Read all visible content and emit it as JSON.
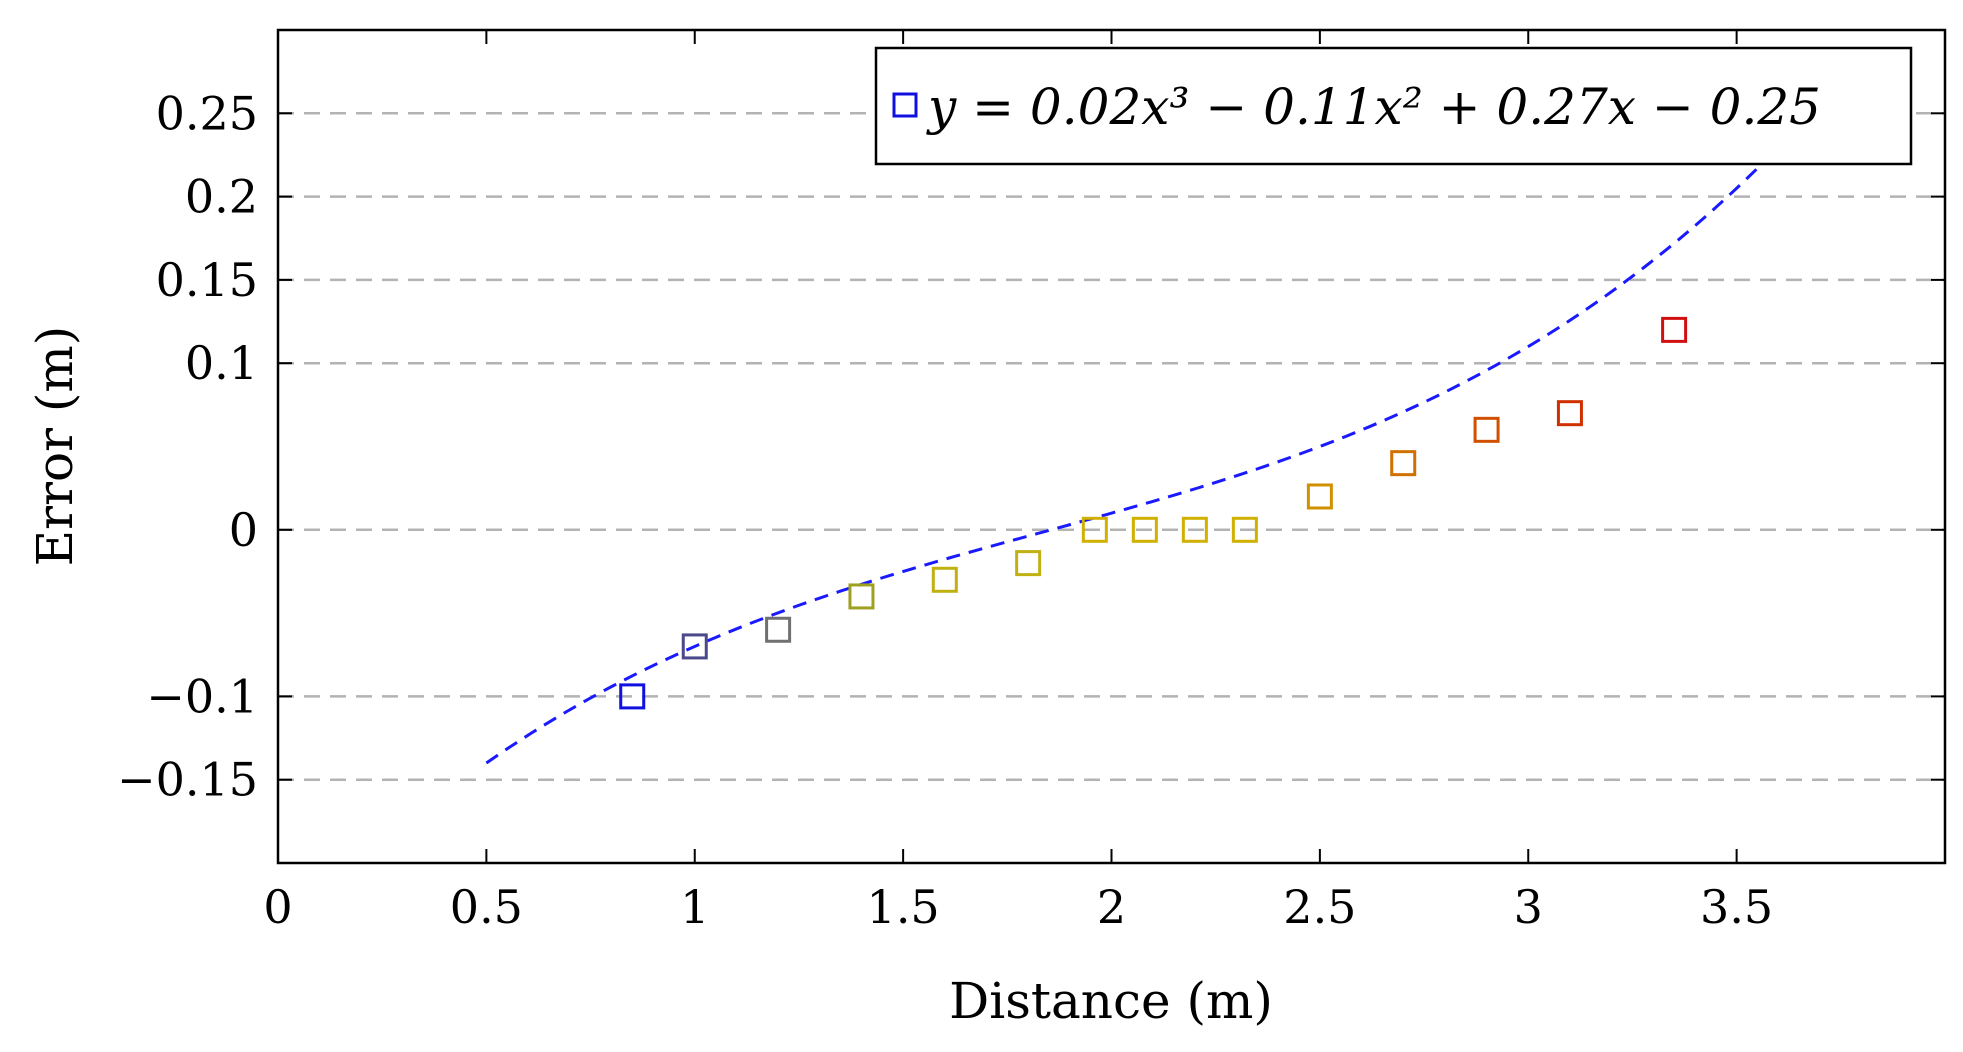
{
  "chart_data": {
    "type": "scatter",
    "title": "",
    "xlabel": "Distance (m)",
    "ylabel": "Error (m)",
    "xlim": [
      0,
      4.0
    ],
    "ylim": [
      -0.2,
      0.3
    ],
    "xticks": [
      0,
      0.5,
      1,
      1.5,
      2,
      2.5,
      3,
      3.5
    ],
    "xtick_labels": [
      "0",
      "0.5",
      "1",
      "1.5",
      "2",
      "2.5",
      "3",
      "3.5"
    ],
    "yticks": [
      -0.15,
      -0.1,
      0,
      0.1,
      0.15,
      0.2,
      0.25
    ],
    "ytick_labels": [
      "−0.15",
      "−0.1",
      "0",
      "0.1",
      "0.15",
      "0.2",
      "0.25"
    ],
    "grid": "y-major-dashed",
    "legend": {
      "position": "top-right",
      "entry": "y = 0.02x³ − 0.11x² + 0.27x − 0.25"
    },
    "fit": {
      "coefficients": [
        0.02,
        -0.11,
        0.27,
        -0.25
      ],
      "x_range": [
        0.5,
        3.8
      ],
      "color": "#1a1aff",
      "style": "dashed"
    },
    "points": [
      {
        "x": 0.85,
        "y": -0.1,
        "color": "#1010e0"
      },
      {
        "x": 1.0,
        "y": -0.07,
        "color": "#4a4a8a"
      },
      {
        "x": 1.2,
        "y": -0.06,
        "color": "#707070"
      },
      {
        "x": 1.4,
        "y": -0.04,
        "color": "#a0a020"
      },
      {
        "x": 1.6,
        "y": -0.03,
        "color": "#c0b010"
      },
      {
        "x": 1.8,
        "y": -0.02,
        "color": "#c0b010"
      },
      {
        "x": 1.96,
        "y": 0.0,
        "color": "#d0b000"
      },
      {
        "x": 2.08,
        "y": 0.0,
        "color": "#d0b000"
      },
      {
        "x": 2.2,
        "y": 0.0,
        "color": "#d0b000"
      },
      {
        "x": 2.32,
        "y": 0.0,
        "color": "#d0b000"
      },
      {
        "x": 2.5,
        "y": 0.02,
        "color": "#d09000"
      },
      {
        "x": 2.7,
        "y": 0.04,
        "color": "#d07000"
      },
      {
        "x": 2.9,
        "y": 0.06,
        "color": "#d05000"
      },
      {
        "x": 3.1,
        "y": 0.07,
        "color": "#d03000"
      },
      {
        "x": 3.35,
        "y": 0.12,
        "color": "#d01010"
      }
    ]
  }
}
